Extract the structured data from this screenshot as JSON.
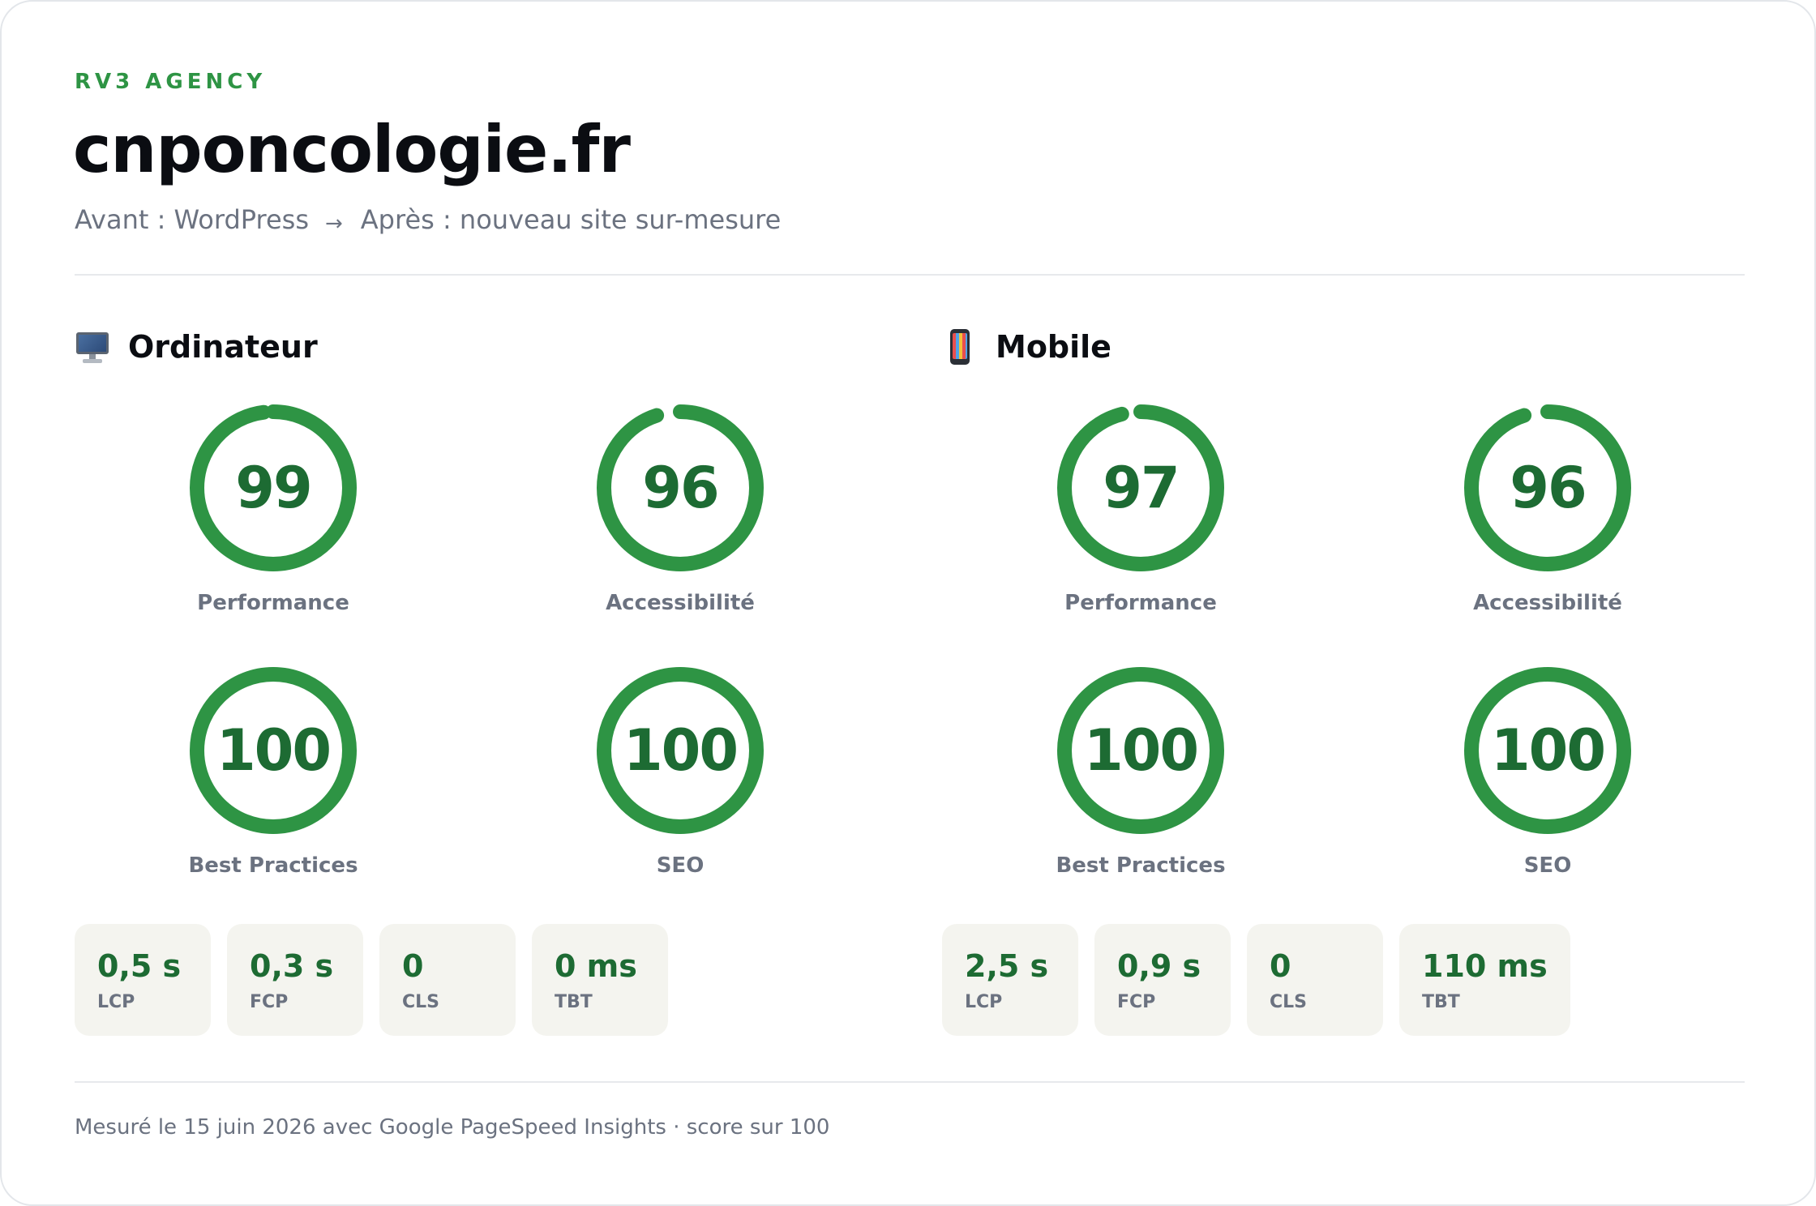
{
  "header": {
    "brand": "RV3 AGENCY",
    "title": "cnponcologie.fr",
    "before": "Avant : WordPress",
    "arrow": "→",
    "after": "Après : nouveau site sur-mesure"
  },
  "colors": {
    "accent": "#2e9444",
    "score_text": "#1d6b33",
    "metric_bg": "#f4f4ef",
    "muted": "#6b7280"
  },
  "desktop": {
    "icon": "desktop-computer-icon",
    "title": "Ordinateur",
    "scores": [
      {
        "label": "Performance",
        "value": 99
      },
      {
        "label": "Accessibilité",
        "value": 96
      },
      {
        "label": "Best Practices",
        "value": 100
      },
      {
        "label": "SEO",
        "value": 100
      }
    ],
    "metrics": [
      {
        "value": "0,5 s",
        "label": "LCP"
      },
      {
        "value": "0,3 s",
        "label": "FCP"
      },
      {
        "value": "0",
        "label": "CLS"
      },
      {
        "value": "0 ms",
        "label": "TBT"
      }
    ]
  },
  "mobile": {
    "icon": "mobile-phone-icon",
    "title": "Mobile",
    "scores": [
      {
        "label": "Performance",
        "value": 97
      },
      {
        "label": "Accessibilité",
        "value": 96
      },
      {
        "label": "Best Practices",
        "value": 100
      },
      {
        "label": "SEO",
        "value": 100
      }
    ],
    "metrics": [
      {
        "value": "2,5 s",
        "label": "LCP"
      },
      {
        "value": "0,9 s",
        "label": "FCP"
      },
      {
        "value": "0",
        "label": "CLS"
      },
      {
        "value": "110 ms",
        "label": "TBT"
      }
    ]
  },
  "footer": "Mesuré le 15 juin 2026 avec Google PageSpeed Insights · score sur 100"
}
